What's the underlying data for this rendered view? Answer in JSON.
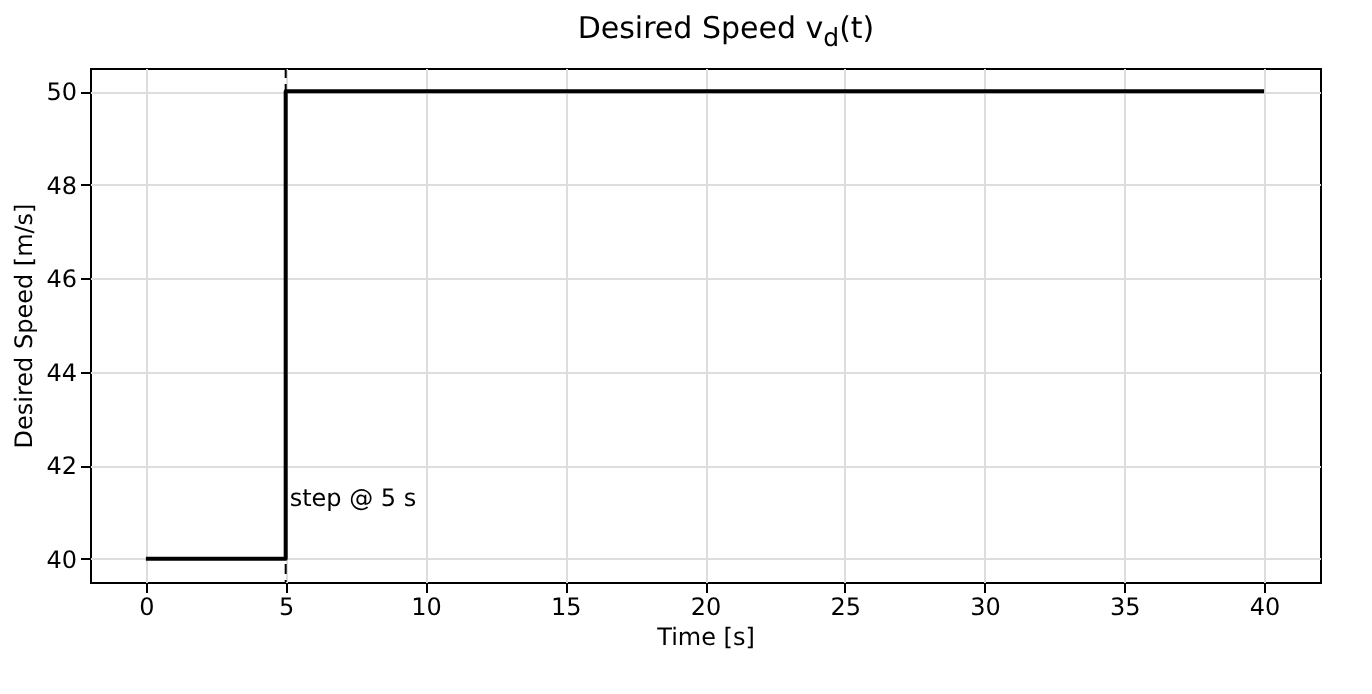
{
  "chart_data": {
    "type": "step",
    "title": "Desired Speed v$_{d}$(t)",
    "xlabel": "Time [s]",
    "ylabel": "Desired Speed [m/s]",
    "x": [
      0,
      5,
      40
    ],
    "series": [
      {
        "color": "#000000",
        "values": [
          40,
          50,
          50
        ]
      }
    ],
    "xlim": [
      -2,
      42
    ],
    "xticks": [
      0,
      5,
      10,
      15,
      20,
      25,
      30,
      35,
      40
    ],
    "ylim": [
      39.5,
      50.5
    ],
    "yticks": [
      40,
      42,
      44,
      46,
      48,
      50
    ],
    "grid": true,
    "line_style": "solid",
    "marker": "none",
    "ref_lines": [
      {
        "axis": "x",
        "value": 5,
        "color": "#000000",
        "line_style": "dashed"
      }
    ],
    "annotations": [
      {
        "text": "step @ 5 s",
        "x": 5,
        "y": 41.3
      }
    ]
  }
}
